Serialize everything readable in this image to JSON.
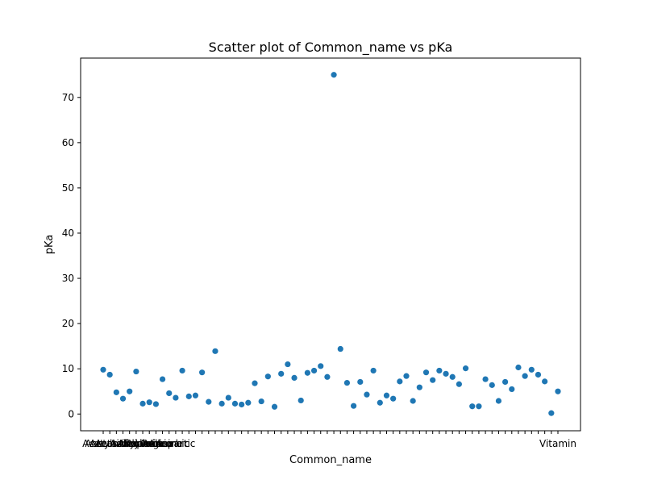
{
  "chart_data": {
    "type": "scatter",
    "title": "Scatter plot of Common_name vs pKa",
    "xlabel": "Common_name",
    "ylabel": "pKa",
    "ylim": [
      -3.7,
      78.7
    ],
    "yticks": [
      0,
      10,
      20,
      30,
      40,
      50,
      60,
      70
    ],
    "grid": false,
    "legend": "none",
    "marker_color": "#1f77b4",
    "x_tick_labels_visible": [
      "Aceta",
      "Acetic",
      "Acetylsalicylic",
      "Acetaminophen",
      "Acridine",
      "Alanine",
      "Allylamine",
      "Ammonia",
      "Aniline",
      "Arginine",
      "Ascorbic",
      "Aspartic"
    ],
    "x_tick_labels_tail": "Vitamin",
    "y": [
      9.8,
      8.7,
      4.8,
      3.4,
      5.0,
      9.4,
      2.3,
      2.6,
      2.2,
      7.7,
      4.6,
      3.6,
      9.6,
      3.9,
      4.1,
      9.2,
      2.7,
      13.9,
      2.3,
      3.6,
      2.3,
      2.1,
      2.5,
      6.8,
      2.8,
      8.3,
      1.6,
      8.9,
      11.0,
      8.0,
      3.0,
      9.1,
      9.6,
      10.6,
      8.2,
      75.0,
      14.4,
      6.9,
      1.8,
      7.1,
      4.3,
      9.6,
      2.5,
      4.1,
      3.4,
      7.2,
      8.4,
      2.9,
      5.9,
      9.2,
      7.5,
      9.6,
      8.9,
      8.2,
      6.6,
      10.1,
      1.7,
      1.7,
      7.7,
      6.4,
      2.9,
      7.1,
      5.5,
      10.3,
      8.4,
      9.8,
      8.7,
      7.2,
      0.2,
      5.0
    ]
  }
}
